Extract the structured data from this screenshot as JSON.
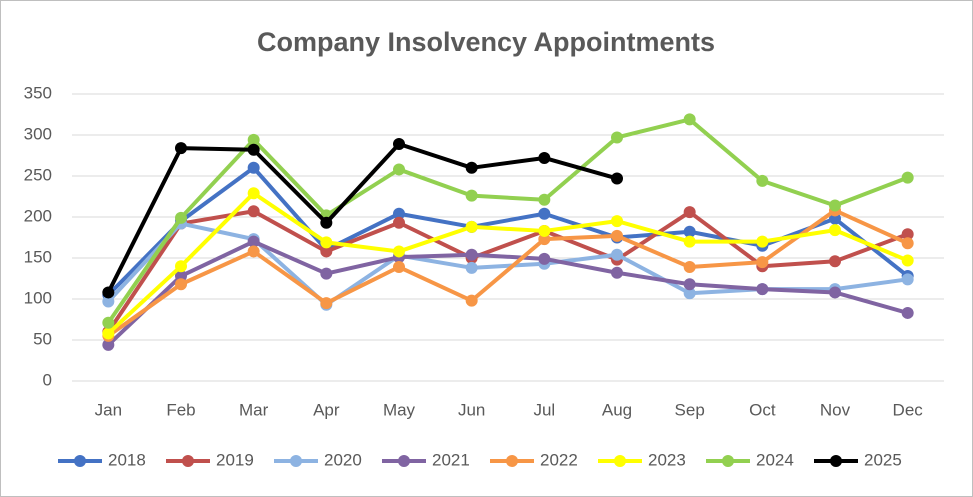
{
  "chart_data": {
    "type": "line",
    "title": "Company Insolvency Appointments",
    "categories": [
      "Jan",
      "Feb",
      "Mar",
      "Apr",
      "May",
      "Jun",
      "Jul",
      "Aug",
      "Sep",
      "Oct",
      "Nov",
      "Dec"
    ],
    "ylim": [
      0,
      350
    ],
    "yticks": [
      0,
      50,
      100,
      150,
      200,
      250,
      300,
      350
    ],
    "grid": true,
    "legend": "bottom",
    "series": [
      {
        "name": "2018",
        "color": "#4472c4",
        "values": [
          105,
          195,
          260,
          160,
          204,
          188,
          204,
          175,
          182,
          165,
          198,
          128
        ]
      },
      {
        "name": "2019",
        "color": "#c0504d",
        "values": [
          60,
          192,
          207,
          158,
          193,
          150,
          183,
          148,
          206,
          140,
          146,
          179
        ]
      },
      {
        "name": "2020",
        "color": "#8db3e2",
        "values": [
          97,
          192,
          173,
          93,
          153,
          138,
          143,
          154,
          107,
          112,
          112,
          124
        ]
      },
      {
        "name": "2021",
        "color": "#8064a2",
        "values": [
          44,
          128,
          170,
          131,
          151,
          154,
          149,
          132,
          118,
          112,
          108,
          83
        ]
      },
      {
        "name": "2022",
        "color": "#f79646",
        "values": [
          55,
          118,
          158,
          95,
          139,
          98,
          173,
          177,
          139,
          145,
          208,
          168
        ]
      },
      {
        "name": "2023",
        "color": "#ffff00",
        "values": [
          58,
          140,
          229,
          169,
          158,
          188,
          183,
          195,
          170,
          170,
          184,
          147
        ]
      },
      {
        "name": "2024",
        "color": "#92d050",
        "values": [
          71,
          199,
          294,
          202,
          258,
          226,
          221,
          297,
          319,
          244,
          214,
          248
        ]
      },
      {
        "name": "2025",
        "color": "#000000",
        "values": [
          108,
          284,
          282,
          193,
          289,
          260,
          272,
          247,
          null,
          null,
          null,
          null
        ]
      }
    ]
  }
}
